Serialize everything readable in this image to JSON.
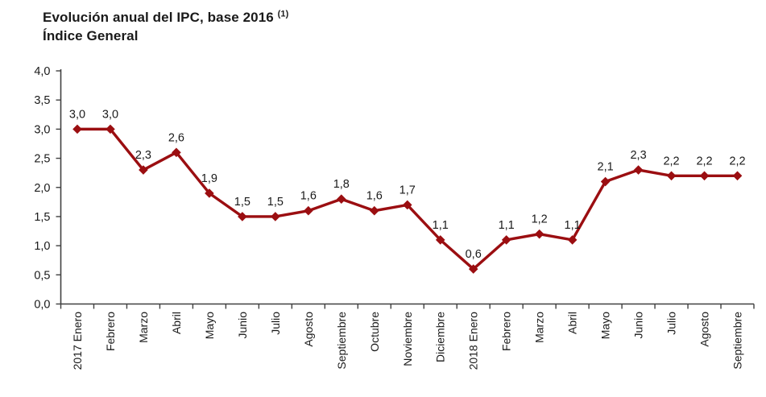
{
  "header": {
    "title": "Evolución anual del IPC, base 2016",
    "superscript": "(1)",
    "subtitle": "Índice General"
  },
  "chart_data": {
    "type": "line",
    "title": "Evolución anual del IPC, base 2016 (1) — Índice General",
    "categories": [
      "2017 Enero",
      "Febrero",
      "Marzo",
      "Abril",
      "Mayo",
      "Junio",
      "Julio",
      "Agosto",
      "Septiembre",
      "Octubre",
      "Noviembre",
      "Diciembre",
      "2018 Enero",
      "Febrero",
      "Marzo",
      "Abril",
      "Mayo",
      "Junio",
      "Julio",
      "Agosto",
      "Septiembre"
    ],
    "values": [
      3.0,
      3.0,
      2.3,
      2.6,
      1.9,
      1.5,
      1.5,
      1.6,
      1.8,
      1.6,
      1.7,
      1.1,
      0.6,
      1.1,
      1.2,
      1.1,
      2.1,
      2.3,
      2.2,
      2.2,
      2.2
    ],
    "point_labels": [
      "3,0",
      "3,0",
      "2,3",
      "2,6",
      "1,9",
      "1,5",
      "1,5",
      "1,6",
      "1,8",
      "1,6",
      "1,7",
      "1,1",
      "0,6",
      "1,1",
      "1,2",
      "1,1",
      "2,1",
      "2,3",
      "2,2",
      "2,2",
      "2,2"
    ],
    "y_tick_labels": [
      "4,0",
      "3,5",
      "3,0",
      "2,5",
      "2,0",
      "1,5",
      "1,0",
      "0,5",
      "0,0"
    ],
    "y_tick_values": [
      4.0,
      3.5,
      3.0,
      2.5,
      2.0,
      1.5,
      1.0,
      0.5,
      0.0
    ],
    "ylim": [
      0,
      4
    ],
    "xlabel": "",
    "ylabel": "",
    "grid": false,
    "legend_position": "none",
    "marker": "diamond",
    "line_color": "#9B0E11",
    "axis_color": "#404040",
    "text_color": "#1A1A1A"
  }
}
